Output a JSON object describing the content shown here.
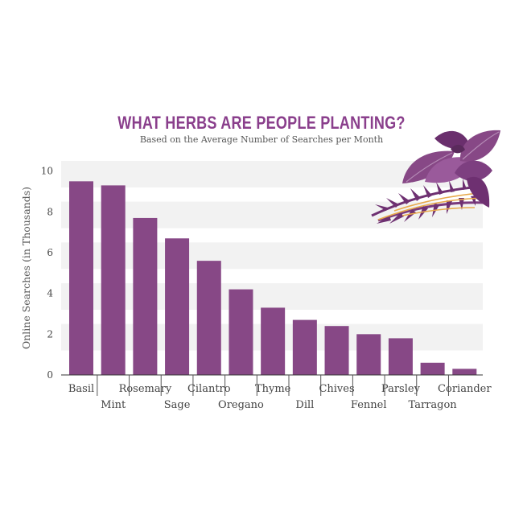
{
  "chart_data": {
    "type": "bar",
    "title": "WHAT HERBS ARE PEOPLE PLANTING?",
    "subtitle": "Based on the Average Number of Searches per Month",
    "ylabel": "Online Searches (in Thousands)",
    "xlabel": "",
    "ylim": [
      0,
      10.5
    ],
    "yticks": [
      0,
      2,
      4,
      6,
      8,
      10
    ],
    "grid": "alternating horizontal bands",
    "categories": [
      "Basil",
      "Mint",
      "Rosemary",
      "Sage",
      "Cilantro",
      "Oregano",
      "Thyme",
      "Dill",
      "Chives",
      "Fennel",
      "Parsley",
      "Tarragon",
      "Coriander"
    ],
    "values": [
      9.5,
      9.3,
      7.7,
      6.7,
      5.6,
      4.2,
      3.3,
      2.7,
      2.4,
      2.0,
      1.8,
      0.6,
      0.3
    ],
    "bar_color": "#874886",
    "band_color": "#f2f2f2",
    "label_rows": [
      "upper",
      "lower",
      "upper",
      "lower",
      "upper",
      "lower",
      "upper",
      "lower",
      "upper",
      "lower",
      "upper",
      "lower",
      "upper"
    ],
    "decoration": "purple-herb-leaves-illustration"
  }
}
